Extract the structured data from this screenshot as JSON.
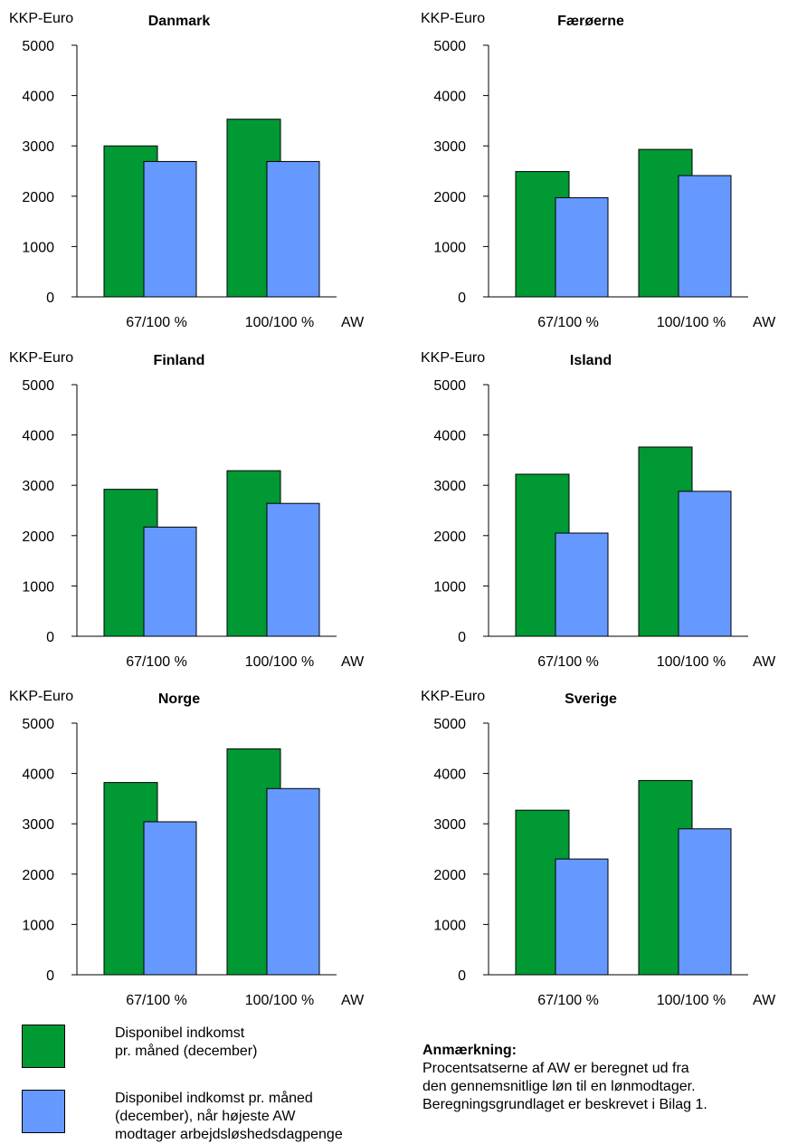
{
  "colors": {
    "green": "#009933",
    "blue": "#6699ff",
    "axis": "#000000"
  },
  "chart_data": [
    {
      "type": "bar",
      "title": "Danmark",
      "ylabel": "KKP-Euro",
      "xunit": "AW",
      "ylim": [
        0,
        5000
      ],
      "yticks": [
        "0",
        "1000",
        "2000",
        "3000",
        "4000",
        "5000"
      ],
      "categories": [
        "67/100 %",
        "100/100 %"
      ],
      "series": [
        {
          "values": [
            3000,
            3530
          ]
        },
        {
          "values": [
            2690,
            2690
          ]
        }
      ]
    },
    {
      "type": "bar",
      "title": "Færøerne",
      "ylabel": "KKP-Euro",
      "xunit": "AW",
      "ylim": [
        0,
        5000
      ],
      "yticks": [
        "0",
        "1000",
        "2000",
        "3000",
        "4000",
        "5000"
      ],
      "categories": [
        "67/100 %",
        "100/100 %"
      ],
      "series": [
        {
          "values": [
            2490,
            2930
          ]
        },
        {
          "values": [
            1970,
            2410
          ]
        }
      ]
    },
    {
      "type": "bar",
      "title": "Finland",
      "ylabel": "KKP-Euro",
      "xunit": "AW",
      "ylim": [
        0,
        5000
      ],
      "yticks": [
        "0",
        "1000",
        "2000",
        "3000",
        "4000",
        "5000"
      ],
      "categories": [
        "67/100 %",
        "100/100 %"
      ],
      "series": [
        {
          "values": [
            2920,
            3290
          ]
        },
        {
          "values": [
            2170,
            2640
          ]
        }
      ]
    },
    {
      "type": "bar",
      "title": "Island",
      "ylabel": "KKP-Euro",
      "xunit": "AW",
      "ylim": [
        0,
        5000
      ],
      "yticks": [
        "0",
        "1000",
        "2000",
        "3000",
        "4000",
        "5000"
      ],
      "categories": [
        "67/100 %",
        "100/100 %"
      ],
      "series": [
        {
          "values": [
            3220,
            3760
          ]
        },
        {
          "values": [
            2050,
            2880
          ]
        }
      ]
    },
    {
      "type": "bar",
      "title": "Norge",
      "ylabel": "KKP-Euro",
      "xunit": "AW",
      "ylim": [
        0,
        5000
      ],
      "yticks": [
        "0",
        "1000",
        "2000",
        "3000",
        "4000",
        "5000"
      ],
      "categories": [
        "67/100 %",
        "100/100 %"
      ],
      "series": [
        {
          "values": [
            3820,
            4490
          ]
        },
        {
          "values": [
            3040,
            3700
          ]
        }
      ]
    },
    {
      "type": "bar",
      "title": "Sverige",
      "ylabel": "KKP-Euro",
      "xunit": "AW",
      "ylim": [
        0,
        5000
      ],
      "yticks": [
        "0",
        "1000",
        "2000",
        "3000",
        "4000",
        "5000"
      ],
      "categories": [
        "67/100 %",
        "100/100 %"
      ],
      "series": [
        {
          "values": [
            3270,
            3860
          ]
        },
        {
          "values": [
            2300,
            2900
          ]
        }
      ]
    }
  ],
  "legend": {
    "items": [
      {
        "label": "Disponibel indkomst\npr. måned (december)",
        "color": "#009933"
      },
      {
        "label": "Disponibel indkomst pr. måned\n(december), når højeste AW\nmodtager arbejdsløshedsdagpenge",
        "color": "#6699ff"
      }
    ]
  },
  "note": {
    "title": "Anmærkning:",
    "lines": [
      "Procentsatserne af AW er beregnet ud fra",
      "den gennemsnitlige løn til en lønmodtager.",
      "Beregningsgrundlaget er beskrevet i Bilag 1."
    ]
  }
}
